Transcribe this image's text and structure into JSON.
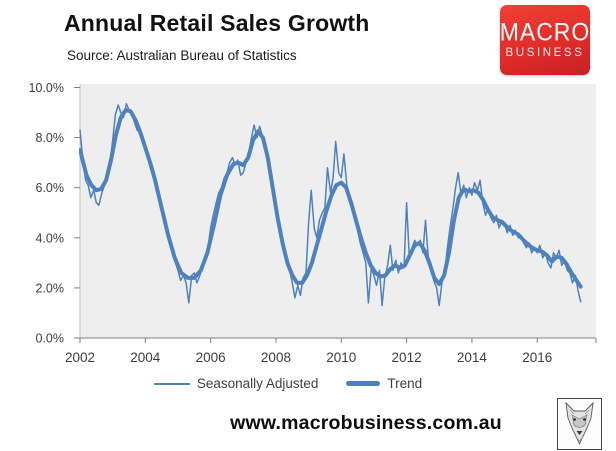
{
  "header": {
    "title": "Annual Retail Sales Growth",
    "source": "Source: Australian Bureau of Statistics"
  },
  "logo": {
    "line1": "MACRO",
    "line2": "BUSINESS",
    "bg_color": "#e02d2a",
    "text_color": "#ffffff"
  },
  "footer": {
    "url": "www.macrobusiness.com.au"
  },
  "colors": {
    "line_blue": "#4f81bd",
    "plot_bg": "#eeeeee",
    "axis_gray": "#8c8c8c",
    "brand_red": "#e02d2a"
  },
  "chart_data": {
    "type": "line",
    "title": "Annual Retail Sales Growth",
    "source": "Australian Bureau of Statistics",
    "xlabel": "",
    "ylabel": "",
    "ylim": [
      0,
      10
    ],
    "ytick_values": [
      0,
      2,
      4,
      6,
      8,
      10
    ],
    "ytick_labels": [
      "0.0%",
      "2.0%",
      "4.0%",
      "6.0%",
      "8.0%",
      "10.0%"
    ],
    "xlim": [
      2002.0,
      2017.8
    ],
    "xticks": [
      2002,
      2004,
      2006,
      2008,
      2010,
      2012,
      2014,
      2016
    ],
    "grid": false,
    "legend_position": "bottom",
    "line_color": "#4f81bd",
    "plot_bg": "#eeeeee",
    "series": [
      {
        "name": "Seasonally Adjusted",
        "stroke_width": 1.5,
        "points": [
          [
            2002.0,
            8.3
          ],
          [
            2002.08,
            7.2
          ],
          [
            2002.17,
            6.3
          ],
          [
            2002.25,
            6.1
          ],
          [
            2002.33,
            5.6
          ],
          [
            2002.42,
            5.9
          ],
          [
            2002.5,
            5.4
          ],
          [
            2002.58,
            5.3
          ],
          [
            2002.67,
            5.8
          ],
          [
            2002.75,
            6.1
          ],
          [
            2002.83,
            6.4
          ],
          [
            2002.92,
            7.0
          ],
          [
            2003.0,
            7.9
          ],
          [
            2003.08,
            8.9
          ],
          [
            2003.17,
            9.3
          ],
          [
            2003.25,
            9.0
          ],
          [
            2003.33,
            8.8
          ],
          [
            2003.42,
            9.35
          ],
          [
            2003.5,
            9.1
          ],
          [
            2003.58,
            9.0
          ],
          [
            2003.67,
            8.6
          ],
          [
            2003.75,
            8.3
          ],
          [
            2003.83,
            8.2
          ],
          [
            2003.92,
            7.8
          ],
          [
            2004.0,
            7.7
          ],
          [
            2004.08,
            7.2
          ],
          [
            2004.17,
            6.7
          ],
          [
            2004.25,
            6.5
          ],
          [
            2004.33,
            5.9
          ],
          [
            2004.42,
            5.6
          ],
          [
            2004.5,
            5.2
          ],
          [
            2004.58,
            4.7
          ],
          [
            2004.67,
            4.3
          ],
          [
            2004.75,
            3.8
          ],
          [
            2004.83,
            3.4
          ],
          [
            2004.92,
            3.0
          ],
          [
            2005.0,
            2.7
          ],
          [
            2005.08,
            2.3
          ],
          [
            2005.17,
            2.5
          ],
          [
            2005.25,
            2.2
          ],
          [
            2005.33,
            1.4
          ],
          [
            2005.42,
            2.5
          ],
          [
            2005.5,
            2.6
          ],
          [
            2005.58,
            2.2
          ],
          [
            2005.67,
            2.5
          ],
          [
            2005.75,
            2.9
          ],
          [
            2005.83,
            3.2
          ],
          [
            2005.92,
            3.6
          ],
          [
            2006.0,
            4.4
          ],
          [
            2006.08,
            4.9
          ],
          [
            2006.17,
            5.4
          ],
          [
            2006.25,
            5.8
          ],
          [
            2006.33,
            6.0
          ],
          [
            2006.42,
            6.4
          ],
          [
            2006.5,
            6.6
          ],
          [
            2006.58,
            7.0
          ],
          [
            2006.67,
            7.2
          ],
          [
            2006.75,
            6.9
          ],
          [
            2006.83,
            7.1
          ],
          [
            2006.92,
            6.5
          ],
          [
            2007.0,
            6.6
          ],
          [
            2007.08,
            7.0
          ],
          [
            2007.17,
            7.4
          ],
          [
            2007.25,
            8.0
          ],
          [
            2007.33,
            8.5
          ],
          [
            2007.42,
            8.0
          ],
          [
            2007.5,
            8.45
          ],
          [
            2007.58,
            8.1
          ],
          [
            2007.67,
            7.6
          ],
          [
            2007.75,
            7.0
          ],
          [
            2007.83,
            6.3
          ],
          [
            2007.92,
            5.6
          ],
          [
            2008.0,
            5.0
          ],
          [
            2008.08,
            4.4
          ],
          [
            2008.17,
            3.9
          ],
          [
            2008.25,
            3.5
          ],
          [
            2008.33,
            3.0
          ],
          [
            2008.42,
            2.7
          ],
          [
            2008.5,
            2.2
          ],
          [
            2008.58,
            1.6
          ],
          [
            2008.67,
            2.1
          ],
          [
            2008.75,
            1.7
          ],
          [
            2008.83,
            2.4
          ],
          [
            2008.92,
            2.6
          ],
          [
            2009.0,
            4.6
          ],
          [
            2009.08,
            5.9
          ],
          [
            2009.17,
            4.4
          ],
          [
            2009.25,
            4.0
          ],
          [
            2009.33,
            4.7
          ],
          [
            2009.42,
            5.0
          ],
          [
            2009.5,
            5.2
          ],
          [
            2009.58,
            6.8
          ],
          [
            2009.67,
            5.8
          ],
          [
            2009.75,
            6.4
          ],
          [
            2009.83,
            7.85
          ],
          [
            2009.92,
            6.6
          ],
          [
            2010.0,
            6.4
          ],
          [
            2010.08,
            7.35
          ],
          [
            2010.17,
            6.1
          ],
          [
            2010.25,
            5.6
          ],
          [
            2010.33,
            5.2
          ],
          [
            2010.42,
            4.8
          ],
          [
            2010.5,
            4.3
          ],
          [
            2010.58,
            3.8
          ],
          [
            2010.67,
            3.4
          ],
          [
            2010.75,
            3.0
          ],
          [
            2010.83,
            1.4
          ],
          [
            2010.92,
            2.8
          ],
          [
            2011.0,
            2.5
          ],
          [
            2011.08,
            2.1
          ],
          [
            2011.17,
            2.7
          ],
          [
            2011.25,
            1.3
          ],
          [
            2011.33,
            2.4
          ],
          [
            2011.42,
            2.9
          ],
          [
            2011.5,
            3.7
          ],
          [
            2011.58,
            2.7
          ],
          [
            2011.67,
            3.1
          ],
          [
            2011.75,
            2.6
          ],
          [
            2011.83,
            3.0
          ],
          [
            2011.92,
            2.8
          ],
          [
            2012.0,
            5.4
          ],
          [
            2012.08,
            3.3
          ],
          [
            2012.17,
            3.6
          ],
          [
            2012.25,
            3.9
          ],
          [
            2012.33,
            3.7
          ],
          [
            2012.42,
            3.9
          ],
          [
            2012.5,
            3.4
          ],
          [
            2012.58,
            4.7
          ],
          [
            2012.67,
            3.1
          ],
          [
            2012.75,
            2.8
          ],
          [
            2012.83,
            2.3
          ],
          [
            2012.92,
            2.0
          ],
          [
            2013.0,
            1.3
          ],
          [
            2013.08,
            2.2
          ],
          [
            2013.17,
            2.7
          ],
          [
            2013.25,
            3.6
          ],
          [
            2013.33,
            4.4
          ],
          [
            2013.42,
            5.2
          ],
          [
            2013.5,
            6.0
          ],
          [
            2013.58,
            6.6
          ],
          [
            2013.67,
            5.7
          ],
          [
            2013.75,
            6.1
          ],
          [
            2013.83,
            5.6
          ],
          [
            2013.92,
            6.0
          ],
          [
            2014.0,
            5.7
          ],
          [
            2014.08,
            6.2
          ],
          [
            2014.17,
            5.9
          ],
          [
            2014.25,
            6.3
          ],
          [
            2014.33,
            5.4
          ],
          [
            2014.42,
            4.9
          ],
          [
            2014.5,
            5.2
          ],
          [
            2014.58,
            4.8
          ],
          [
            2014.67,
            4.6
          ],
          [
            2014.75,
            4.9
          ],
          [
            2014.83,
            4.4
          ],
          [
            2014.92,
            4.7
          ],
          [
            2015.0,
            4.6
          ],
          [
            2015.08,
            4.2
          ],
          [
            2015.17,
            4.5
          ],
          [
            2015.25,
            4.1
          ],
          [
            2015.33,
            4.3
          ],
          [
            2015.42,
            4.0
          ],
          [
            2015.5,
            4.1
          ],
          [
            2015.58,
            3.8
          ],
          [
            2015.67,
            3.6
          ],
          [
            2015.75,
            3.8
          ],
          [
            2015.83,
            3.4
          ],
          [
            2015.92,
            3.6
          ],
          [
            2016.0,
            3.4
          ],
          [
            2016.08,
            3.7
          ],
          [
            2016.17,
            3.2
          ],
          [
            2016.25,
            3.4
          ],
          [
            2016.33,
            3.0
          ],
          [
            2016.42,
            2.8
          ],
          [
            2016.5,
            3.4
          ],
          [
            2016.58,
            3.2
          ],
          [
            2016.67,
            3.5
          ],
          [
            2016.75,
            2.9
          ],
          [
            2016.83,
            3.1
          ],
          [
            2016.92,
            2.7
          ],
          [
            2017.0,
            2.6
          ],
          [
            2017.08,
            2.2
          ],
          [
            2017.17,
            2.5
          ],
          [
            2017.25,
            1.9
          ],
          [
            2017.33,
            1.45
          ]
        ]
      },
      {
        "name": "Trend",
        "stroke_width": 4,
        "points": [
          [
            2002.0,
            7.5
          ],
          [
            2002.1,
            7.0
          ],
          [
            2002.2,
            6.5
          ],
          [
            2002.35,
            6.1
          ],
          [
            2002.5,
            5.9
          ],
          [
            2002.65,
            5.95
          ],
          [
            2002.8,
            6.3
          ],
          [
            2002.95,
            7.1
          ],
          [
            2003.1,
            8.1
          ],
          [
            2003.25,
            8.8
          ],
          [
            2003.4,
            9.1
          ],
          [
            2003.55,
            9.05
          ],
          [
            2003.7,
            8.7
          ],
          [
            2003.85,
            8.2
          ],
          [
            2004.0,
            7.6
          ],
          [
            2004.15,
            7.0
          ],
          [
            2004.3,
            6.3
          ],
          [
            2004.5,
            5.2
          ],
          [
            2004.7,
            4.1
          ],
          [
            2004.9,
            3.2
          ],
          [
            2005.1,
            2.6
          ],
          [
            2005.3,
            2.4
          ],
          [
            2005.5,
            2.4
          ],
          [
            2005.7,
            2.7
          ],
          [
            2005.9,
            3.4
          ],
          [
            2006.1,
            4.5
          ],
          [
            2006.3,
            5.7
          ],
          [
            2006.5,
            6.5
          ],
          [
            2006.7,
            6.95
          ],
          [
            2006.85,
            7.0
          ],
          [
            2007.0,
            6.9
          ],
          [
            2007.15,
            7.2
          ],
          [
            2007.3,
            7.9
          ],
          [
            2007.45,
            8.25
          ],
          [
            2007.6,
            8.0
          ],
          [
            2007.75,
            7.2
          ],
          [
            2007.9,
            6.0
          ],
          [
            2008.05,
            4.8
          ],
          [
            2008.2,
            3.8
          ],
          [
            2008.35,
            3.0
          ],
          [
            2008.5,
            2.5
          ],
          [
            2008.65,
            2.2
          ],
          [
            2008.8,
            2.2
          ],
          [
            2008.95,
            2.5
          ],
          [
            2009.1,
            3.0
          ],
          [
            2009.25,
            3.7
          ],
          [
            2009.4,
            4.4
          ],
          [
            2009.55,
            5.1
          ],
          [
            2009.7,
            5.7
          ],
          [
            2009.85,
            6.1
          ],
          [
            2010.0,
            6.2
          ],
          [
            2010.15,
            6.0
          ],
          [
            2010.3,
            5.4
          ],
          [
            2010.45,
            4.7
          ],
          [
            2010.6,
            4.0
          ],
          [
            2010.75,
            3.4
          ],
          [
            2010.9,
            2.9
          ],
          [
            2011.05,
            2.6
          ],
          [
            2011.2,
            2.45
          ],
          [
            2011.35,
            2.5
          ],
          [
            2011.5,
            2.75
          ],
          [
            2011.65,
            2.9
          ],
          [
            2011.8,
            2.8
          ],
          [
            2011.95,
            2.9
          ],
          [
            2012.1,
            3.3
          ],
          [
            2012.25,
            3.7
          ],
          [
            2012.4,
            3.8
          ],
          [
            2012.55,
            3.5
          ],
          [
            2012.7,
            3.0
          ],
          [
            2012.85,
            2.4
          ],
          [
            2013.0,
            2.15
          ],
          [
            2013.15,
            2.5
          ],
          [
            2013.3,
            3.4
          ],
          [
            2013.45,
            4.7
          ],
          [
            2013.6,
            5.6
          ],
          [
            2013.75,
            5.95
          ],
          [
            2013.9,
            5.85
          ],
          [
            2014.05,
            5.9
          ],
          [
            2014.2,
            5.8
          ],
          [
            2014.35,
            5.5
          ],
          [
            2014.5,
            5.1
          ],
          [
            2014.65,
            4.8
          ],
          [
            2014.8,
            4.7
          ],
          [
            2014.95,
            4.6
          ],
          [
            2015.1,
            4.4
          ],
          [
            2015.25,
            4.25
          ],
          [
            2015.4,
            4.15
          ],
          [
            2015.55,
            3.95
          ],
          [
            2015.7,
            3.75
          ],
          [
            2015.85,
            3.6
          ],
          [
            2016.0,
            3.5
          ],
          [
            2016.15,
            3.45
          ],
          [
            2016.3,
            3.3
          ],
          [
            2016.45,
            3.05
          ],
          [
            2016.6,
            3.25
          ],
          [
            2016.75,
            3.2
          ],
          [
            2016.9,
            2.95
          ],
          [
            2017.05,
            2.6
          ],
          [
            2017.2,
            2.3
          ],
          [
            2017.33,
            2.05
          ]
        ]
      }
    ]
  }
}
